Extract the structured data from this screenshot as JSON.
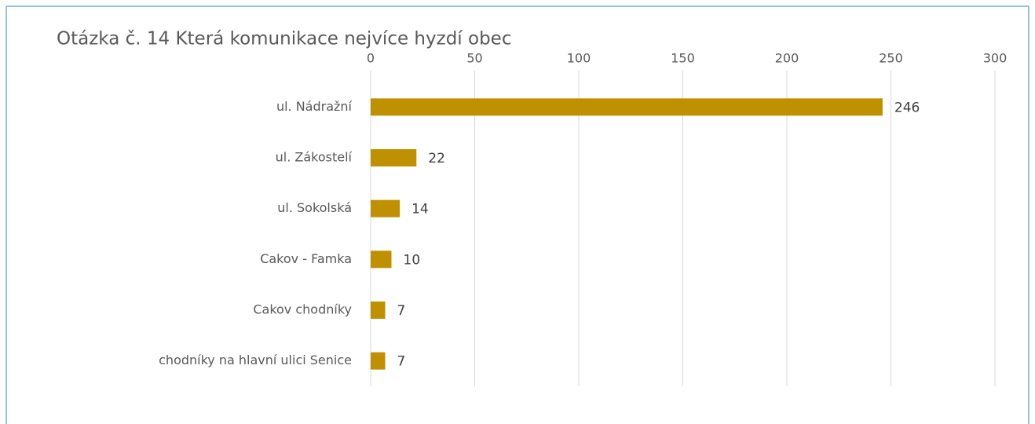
{
  "chart_data": {
    "type": "bar",
    "orientation": "horizontal",
    "title": "Otázka č. 14 Která komunikace nejvíce hyzdí obec",
    "categories": [
      "ul. Nádražní",
      "ul. Zákostelí",
      "ul. Sokolská",
      "Cakov - Famka",
      "Cakov chodníky",
      "chodníky na hlavní ulici Senice"
    ],
    "values": [
      246,
      22,
      14,
      10,
      7,
      7
    ],
    "color": "#bf9000",
    "xlim": [
      0,
      300
    ],
    "xticks": [
      0,
      50,
      100,
      150,
      200,
      250,
      300
    ],
    "grid": true
  }
}
